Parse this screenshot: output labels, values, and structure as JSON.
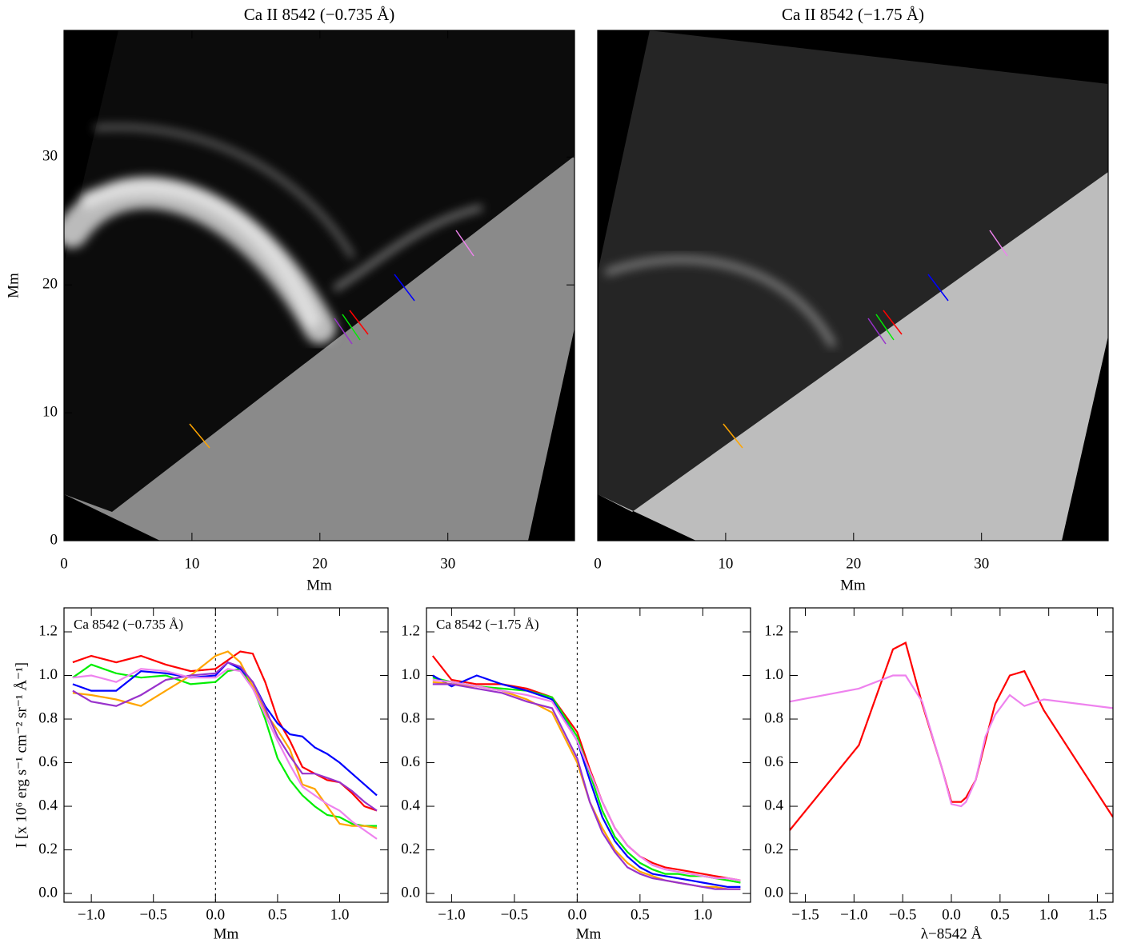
{
  "chart_data": [
    {
      "type": "image",
      "title": "Ca II 8542 (−0.735 Å)",
      "xlabel": "Mm",
      "ylabel": "Mm",
      "xlim": [
        0,
        39.9
      ],
      "ylim": [
        0,
        39.9
      ],
      "xticks": [
        0,
        10,
        20,
        30
      ],
      "yticks": [
        0,
        10,
        20,
        30
      ]
    },
    {
      "type": "image",
      "title": "Ca II 8542 (−1.75 Å)",
      "xlabel": "Mm",
      "xlim": [
        0,
        39.9
      ],
      "ylim": [
        0,
        39.9
      ],
      "xticks": [
        0,
        10,
        20,
        30
      ]
    },
    {
      "type": "line",
      "annotation": "Ca 8542 (−0.735 Å)",
      "xlabel": "Mm",
      "ylabel": "I [x 10⁶ erg s⁻¹ cm⁻² sr⁻¹ Å⁻¹]",
      "xlim": [
        -1.22,
        1.39
      ],
      "ylim": [
        -0.04,
        1.31
      ],
      "vline": 0,
      "xticks": [
        {
          "value": -1,
          "label": "−1.0"
        },
        {
          "value": -0.5,
          "label": "−0.5"
        },
        {
          "value": 0,
          "label": "0.0"
        },
        {
          "value": 0.5,
          "label": "0.5"
        },
        {
          "value": 1,
          "label": "1.0"
        }
      ],
      "yticks": [
        {
          "value": 0,
          "label": "0.0"
        },
        {
          "value": 0.2,
          "label": "0.2"
        },
        {
          "value": 0.4,
          "label": "0.4"
        },
        {
          "value": 0.6,
          "label": "0.6"
        },
        {
          "value": 0.8,
          "label": "0.8"
        },
        {
          "value": 1,
          "label": "1.0"
        },
        {
          "value": 1.2,
          "label": "1.2"
        }
      ],
      "x": [
        -1.15,
        -1.0,
        -0.8,
        -0.6,
        -0.4,
        -0.2,
        0.0,
        0.1,
        0.2,
        0.3,
        0.4,
        0.5,
        0.6,
        0.7,
        0.8,
        0.9,
        1.0,
        1.1,
        1.2,
        1.3
      ],
      "series": [
        {
          "color": "#ff0000",
          "values": [
            1.06,
            1.09,
            1.06,
            1.09,
            1.05,
            1.02,
            1.03,
            1.07,
            1.11,
            1.1,
            0.97,
            0.8,
            0.7,
            0.58,
            0.55,
            0.52,
            0.51,
            0.46,
            0.4,
            0.38
          ]
        },
        {
          "color": "#00ee00",
          "values": [
            0.99,
            1.05,
            1.01,
            0.99,
            1.0,
            0.96,
            0.97,
            1.02,
            1.03,
            0.95,
            0.8,
            0.62,
            0.52,
            0.45,
            0.4,
            0.36,
            0.35,
            0.32,
            0.31,
            0.31
          ]
        },
        {
          "color": "#0000ff",
          "values": [
            0.96,
            0.93,
            0.93,
            1.02,
            1.01,
            0.99,
            1.0,
            1.06,
            1.03,
            0.97,
            0.86,
            0.78,
            0.73,
            0.72,
            0.67,
            0.64,
            0.6,
            0.55,
            0.5,
            0.45
          ]
        },
        {
          "color": "#ffa500",
          "values": [
            0.92,
            0.91,
            0.89,
            0.86,
            0.93,
            1.0,
            1.09,
            1.11,
            1.06,
            0.95,
            0.83,
            0.75,
            0.66,
            0.5,
            0.48,
            0.4,
            0.32,
            0.31,
            0.31,
            0.3
          ]
        },
        {
          "color": "#9932cc",
          "values": [
            0.93,
            0.88,
            0.86,
            0.91,
            0.98,
            1.0,
            1.01,
            1.06,
            1.04,
            0.97,
            0.85,
            0.72,
            0.63,
            0.55,
            0.55,
            0.53,
            0.51,
            0.47,
            0.42,
            0.38
          ]
        },
        {
          "color": "#ee82ee",
          "values": [
            0.99,
            1.0,
            0.97,
            1.03,
            1.02,
            0.99,
            0.99,
            1.03,
            1.02,
            0.94,
            0.82,
            0.7,
            0.59,
            0.49,
            0.45,
            0.41,
            0.38,
            0.33,
            0.29,
            0.25
          ]
        }
      ]
    },
    {
      "type": "line",
      "annotation": "Ca 8542 (−1.75 Å)",
      "xlabel": "Mm",
      "xlim": [
        -1.2,
        1.38
      ],
      "ylim": [
        -0.04,
        1.31
      ],
      "vline": 0,
      "xticks": [
        {
          "value": -1,
          "label": "−1.0"
        },
        {
          "value": -0.5,
          "label": "−0.5"
        },
        {
          "value": 0,
          "label": "0.0"
        },
        {
          "value": 0.5,
          "label": "0.5"
        },
        {
          "value": 1,
          "label": "1.0"
        }
      ],
      "yticks": [
        {
          "value": 0,
          "label": "0.0"
        },
        {
          "value": 0.2,
          "label": "0.2"
        },
        {
          "value": 0.4,
          "label": "0.4"
        },
        {
          "value": 0.6,
          "label": "0.6"
        },
        {
          "value": 0.8,
          "label": "0.8"
        },
        {
          "value": 1,
          "label": "1.0"
        },
        {
          "value": 1.2,
          "label": "1.2"
        }
      ],
      "x": [
        -1.15,
        -1.0,
        -0.8,
        -0.6,
        -0.4,
        -0.2,
        0.0,
        0.1,
        0.2,
        0.3,
        0.4,
        0.5,
        0.6,
        0.7,
        0.8,
        0.9,
        1.0,
        1.1,
        1.2,
        1.3
      ],
      "series": [
        {
          "color": "#ff0000",
          "values": [
            1.09,
            0.98,
            0.96,
            0.96,
            0.94,
            0.9,
            0.74,
            0.57,
            0.42,
            0.3,
            0.22,
            0.17,
            0.14,
            0.12,
            0.11,
            0.1,
            0.09,
            0.08,
            0.07,
            0.06
          ]
        },
        {
          "color": "#00ee00",
          "values": [
            0.99,
            0.97,
            0.95,
            0.94,
            0.93,
            0.9,
            0.72,
            0.55,
            0.38,
            0.26,
            0.19,
            0.14,
            0.11,
            0.09,
            0.09,
            0.08,
            0.08,
            0.07,
            0.06,
            0.05
          ]
        },
        {
          "color": "#0000ff",
          "values": [
            1.0,
            0.95,
            1.0,
            0.96,
            0.93,
            0.89,
            0.7,
            0.52,
            0.35,
            0.24,
            0.17,
            0.12,
            0.09,
            0.08,
            0.07,
            0.06,
            0.05,
            0.04,
            0.03,
            0.03
          ]
        },
        {
          "color": "#ffa500",
          "values": [
            0.97,
            0.96,
            0.95,
            0.93,
            0.89,
            0.83,
            0.6,
            0.42,
            0.3,
            0.2,
            0.14,
            0.1,
            0.08,
            0.06,
            0.05,
            0.04,
            0.03,
            0.03,
            0.02,
            0.02
          ]
        },
        {
          "color": "#9932cc",
          "values": [
            0.96,
            0.96,
            0.94,
            0.92,
            0.88,
            0.85,
            0.62,
            0.42,
            0.28,
            0.19,
            0.12,
            0.09,
            0.07,
            0.06,
            0.05,
            0.04,
            0.03,
            0.02,
            0.02,
            0.02
          ]
        },
        {
          "color": "#ee82ee",
          "values": [
            0.98,
            0.97,
            0.95,
            0.93,
            0.91,
            0.88,
            0.7,
            0.56,
            0.42,
            0.3,
            0.22,
            0.17,
            0.13,
            0.11,
            0.1,
            0.09,
            0.08,
            0.07,
            0.07,
            0.06
          ]
        }
      ]
    },
    {
      "type": "line",
      "xlabel": "λ−8542 Å",
      "xlim": [
        -1.66,
        1.66
      ],
      "ylim": [
        -0.04,
        1.31
      ],
      "xticks": [
        {
          "value": -1.5,
          "label": "−1.5"
        },
        {
          "value": -1,
          "label": "−1.0"
        },
        {
          "value": -0.5,
          "label": "−0.5"
        },
        {
          "value": 0,
          "label": "0.0"
        },
        {
          "value": 0.5,
          "label": "0.5"
        },
        {
          "value": 1,
          "label": "1.0"
        },
        {
          "value": 1.5,
          "label": "1.5"
        }
      ],
      "yticks": [
        {
          "value": 0,
          "label": "0.0"
        },
        {
          "value": 0.2,
          "label": "0.2"
        },
        {
          "value": 0.4,
          "label": "0.4"
        },
        {
          "value": 0.6,
          "label": "0.6"
        },
        {
          "value": 0.8,
          "label": "0.8"
        },
        {
          "value": 1,
          "label": "1.0"
        },
        {
          "value": 1.2,
          "label": "1.2"
        }
      ],
      "x": [
        -1.66,
        -0.95,
        -0.6,
        -0.47,
        -0.3,
        -0.1,
        0.0,
        0.1,
        0.15,
        0.25,
        0.35,
        0.45,
        0.6,
        0.75,
        0.95,
        1.66
      ],
      "series": [
        {
          "color": "#ff0000",
          "values": [
            0.29,
            0.68,
            1.12,
            1.15,
            0.87,
            0.58,
            0.42,
            0.42,
            0.44,
            0.52,
            0.7,
            0.87,
            1.0,
            1.02,
            0.84,
            0.35
          ]
        },
        {
          "color": "#ee82ee",
          "values": [
            0.88,
            0.94,
            1.0,
            1.0,
            0.88,
            0.58,
            0.41,
            0.4,
            0.42,
            0.52,
            0.72,
            0.82,
            0.91,
            0.86,
            0.89,
            0.85
          ]
        }
      ]
    }
  ]
}
